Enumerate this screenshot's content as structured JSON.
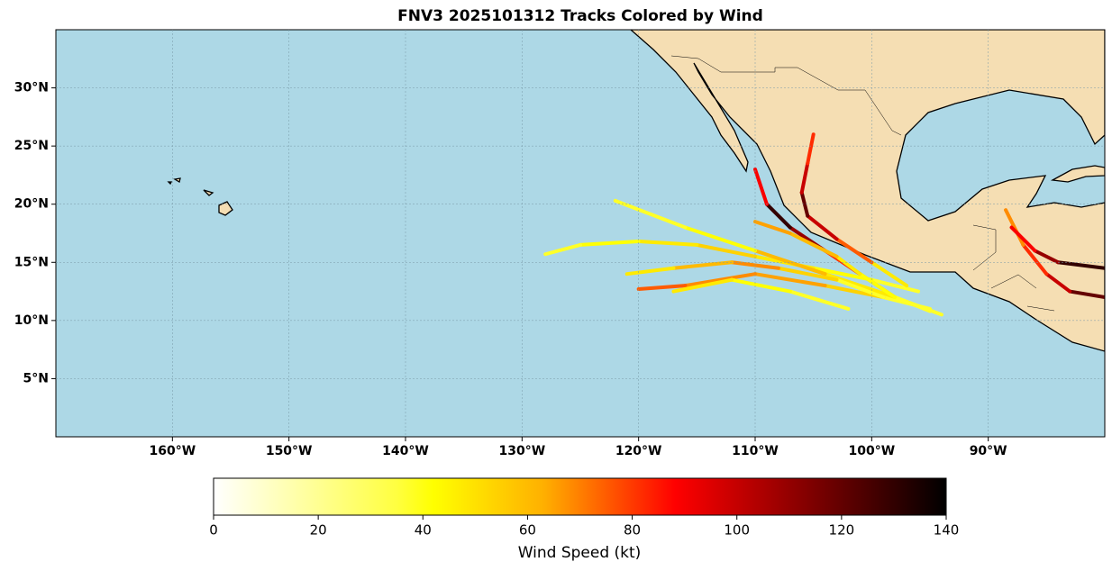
{
  "chart_data": {
    "type": "track-map",
    "title": "FNV3 2025101312 Tracks Colored by Wind",
    "xlim": [
      -170,
      -80
    ],
    "ylim": [
      0,
      35
    ],
    "xticks": [
      {
        "value": -160,
        "label": "160°W"
      },
      {
        "value": -150,
        "label": "150°W"
      },
      {
        "value": -140,
        "label": "140°W"
      },
      {
        "value": -130,
        "label": "130°W"
      },
      {
        "value": -120,
        "label": "120°W"
      },
      {
        "value": -110,
        "label": "110°W"
      },
      {
        "value": -100,
        "label": "100°W"
      },
      {
        "value": -90,
        "label": "90°W"
      }
    ],
    "yticks": [
      {
        "value": 5,
        "label": "5°N"
      },
      {
        "value": 10,
        "label": "10°N"
      },
      {
        "value": 15,
        "label": "15°N"
      },
      {
        "value": 20,
        "label": "20°N"
      },
      {
        "value": 25,
        "label": "25°N"
      },
      {
        "value": 30,
        "label": "30°N"
      }
    ],
    "grid": true,
    "colorbar": {
      "label": "Wind Speed (kt)",
      "lim": [
        0,
        140
      ],
      "ticks": [
        0,
        20,
        40,
        60,
        80,
        100,
        120,
        140
      ]
    },
    "tracks": [
      {
        "lon": [
          -96,
          -100,
          -105,
          -110,
          -115,
          -120,
          -125,
          -128
        ],
        "lat": [
          12.5,
          13.5,
          14.5,
          15.5,
          16.5,
          16.8,
          16.5,
          15.7
        ],
        "wind": [
          30,
          35,
          40,
          45,
          40,
          35,
          30,
          25
        ]
      },
      {
        "lon": [
          -97,
          -100,
          -103,
          -105.5,
          -106,
          -105.5,
          -105
        ],
        "lat": [
          13,
          15,
          17,
          19,
          21,
          23.5,
          26
        ],
        "wind": [
          40,
          70,
          100,
          120,
          100,
          80,
          70
        ]
      },
      {
        "lon": [
          -98,
          -101,
          -104,
          -107,
          -109,
          -110
        ],
        "lat": [
          12,
          14,
          16,
          18,
          20,
          23
        ],
        "wind": [
          50,
          80,
          110,
          130,
          90,
          40
        ]
      },
      {
        "lon": [
          -95,
          -99,
          -104,
          -110,
          -116,
          -120
        ],
        "lat": [
          11,
          12,
          13,
          14,
          13,
          12.7
        ],
        "wind": [
          30,
          45,
          55,
          60,
          70,
          90
        ]
      },
      {
        "lon": [
          -94,
          -98,
          -104,
          -110,
          -116,
          -122
        ],
        "lat": [
          10.5,
          12,
          14,
          16,
          18,
          20.3
        ],
        "wind": [
          30,
          40,
          50,
          35,
          30,
          55
        ]
      },
      {
        "lon": [
          -99,
          -103,
          -108,
          -112,
          -117,
          -121
        ],
        "lat": [
          12,
          13.5,
          14.5,
          15,
          14.5,
          14
        ],
        "wind": [
          30,
          45,
          60,
          50,
          40,
          30
        ]
      },
      {
        "lon": [
          -80,
          -83,
          -85,
          -87,
          -88.5
        ],
        "lat": [
          12,
          12.5,
          14,
          16.5,
          19.5
        ],
        "wind": [
          120,
          100,
          80,
          60,
          50
        ]
      },
      {
        "lon": [
          -80,
          -84,
          -86,
          -88
        ],
        "lat": [
          14.5,
          15,
          16,
          18
        ],
        "wind": [
          130,
          110,
          90,
          40
        ]
      },
      {
        "lon": [
          -95,
          -98,
          -101,
          -103,
          -107,
          -110
        ],
        "lat": [
          10.8,
          12,
          14,
          15.5,
          17.5,
          18.5
        ],
        "wind": [
          30,
          35,
          40,
          50,
          55,
          100
        ]
      },
      {
        "lon": [
          -102,
          -107,
          -112,
          -117
        ],
        "lat": [
          11,
          12.5,
          13.5,
          12.5
        ],
        "wind": [
          30,
          35,
          40,
          55
        ]
      }
    ]
  }
}
